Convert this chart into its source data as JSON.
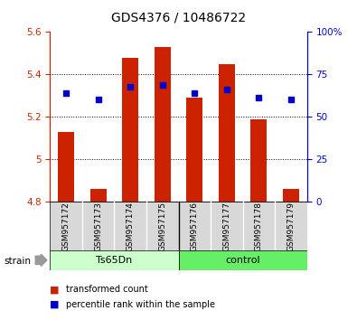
{
  "title": "GDS4376 / 10486722",
  "samples": [
    "GSM957172",
    "GSM957173",
    "GSM957174",
    "GSM957175",
    "GSM957176",
    "GSM957177",
    "GSM957178",
    "GSM957179"
  ],
  "bar_values": [
    5.13,
    4.86,
    5.48,
    5.53,
    5.29,
    5.45,
    5.19,
    4.86
  ],
  "dot_values": [
    5.31,
    5.28,
    5.34,
    5.35,
    5.31,
    5.33,
    5.29,
    5.28
  ],
  "bar_base": 4.8,
  "ylim": [
    4.8,
    5.6
  ],
  "yticks_left": [
    4.8,
    5.0,
    5.2,
    5.4,
    5.6
  ],
  "yticks_left_labels": [
    "4.8",
    "5",
    "5.2",
    "5.4",
    "5.6"
  ],
  "yticks_right": [
    0,
    25,
    50,
    75,
    100
  ],
  "yticks_right_labels": [
    "0",
    "25",
    "50",
    "75",
    "100%"
  ],
  "bar_color": "#cc2200",
  "dot_color": "#0000cc",
  "group1_label": "Ts65Dn",
  "group2_label": "control",
  "group1_color": "#ccffcc",
  "group2_color": "#66ee66",
  "strain_label": "strain",
  "legend_bar_label": "transformed count",
  "legend_dot_label": "percentile rank within the sample",
  "bar_width": 0.5,
  "label_color": "#d0d0d0",
  "grid_color": "black",
  "grid_lines": [
    5.0,
    5.2,
    5.4
  ],
  "title_fontsize": 10,
  "tick_fontsize": 7.5,
  "sample_fontsize": 6.5,
  "group_fontsize": 8,
  "legend_fontsize": 7
}
